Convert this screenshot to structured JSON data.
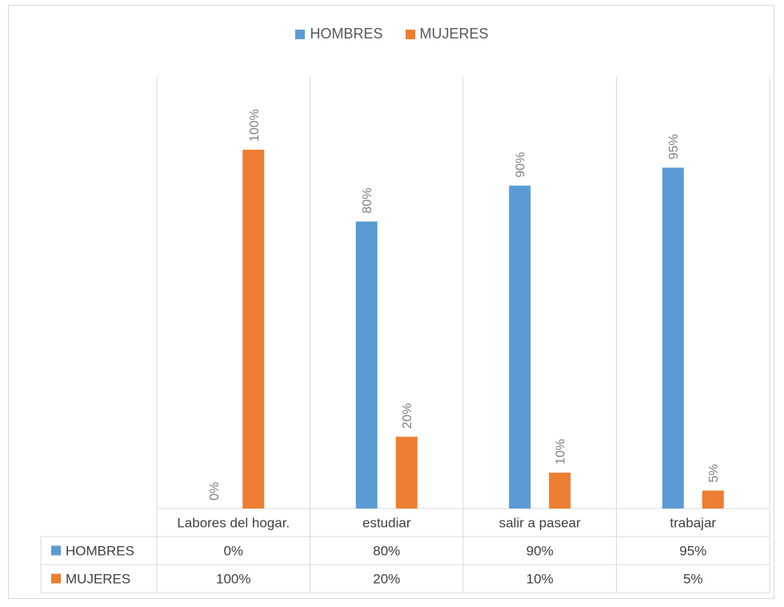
{
  "chart_data": {
    "type": "bar",
    "categories": [
      "Labores del hogar.",
      "estudiar",
      "salir a pasear",
      "trabajar"
    ],
    "series": [
      {
        "name": "HOMBRES",
        "values": [
          0,
          80,
          90,
          95
        ],
        "color": "#5b9bd5"
      },
      {
        "name": "MUJERES",
        "values": [
          100,
          20,
          10,
          5
        ],
        "color": "#ed7d31"
      }
    ],
    "data_labels": [
      [
        "0%",
        "80%",
        "90%",
        "95%"
      ],
      [
        "100%",
        "20%",
        "10%",
        "5%"
      ]
    ],
    "ylim": [
      0,
      100
    ],
    "grid": false,
    "legend_position": "top-center",
    "data_table": true
  }
}
